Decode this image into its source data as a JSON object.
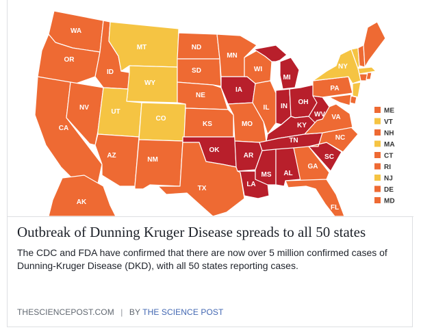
{
  "colors": {
    "dark_red": "#b81f2b",
    "orange": "#ee6a33",
    "yellow": "#f5c443",
    "text": "#1d2129",
    "muted": "#606770"
  },
  "map": {
    "states": [
      {
        "abbr": "WA",
        "level": "orange"
      },
      {
        "abbr": "OR",
        "level": "orange"
      },
      {
        "abbr": "CA",
        "level": "orange"
      },
      {
        "abbr": "NV",
        "level": "orange"
      },
      {
        "abbr": "ID",
        "level": "orange"
      },
      {
        "abbr": "MT",
        "level": "yellow"
      },
      {
        "abbr": "WY",
        "level": "yellow"
      },
      {
        "abbr": "UT",
        "level": "yellow"
      },
      {
        "abbr": "CO",
        "level": "yellow"
      },
      {
        "abbr": "AZ",
        "level": "orange"
      },
      {
        "abbr": "NM",
        "level": "orange"
      },
      {
        "abbr": "ND",
        "level": "orange"
      },
      {
        "abbr": "SD",
        "level": "orange"
      },
      {
        "abbr": "NE",
        "level": "orange"
      },
      {
        "abbr": "KS",
        "level": "orange"
      },
      {
        "abbr": "OK",
        "level": "dark_red"
      },
      {
        "abbr": "TX",
        "level": "orange"
      },
      {
        "abbr": "MN",
        "level": "orange"
      },
      {
        "abbr": "IA",
        "level": "dark_red"
      },
      {
        "abbr": "MO",
        "level": "orange"
      },
      {
        "abbr": "AR",
        "level": "dark_red"
      },
      {
        "abbr": "LA",
        "level": "dark_red"
      },
      {
        "abbr": "WI",
        "level": "orange"
      },
      {
        "abbr": "IL",
        "level": "orange"
      },
      {
        "abbr": "MI",
        "level": "dark_red"
      },
      {
        "abbr": "IN",
        "level": "dark_red"
      },
      {
        "abbr": "OH",
        "level": "dark_red"
      },
      {
        "abbr": "KY",
        "level": "dark_red"
      },
      {
        "abbr": "WV",
        "level": "dark_red"
      },
      {
        "abbr": "TN",
        "level": "dark_red"
      },
      {
        "abbr": "MS",
        "level": "dark_red"
      },
      {
        "abbr": "AL",
        "level": "dark_red"
      },
      {
        "abbr": "GA",
        "level": "orange"
      },
      {
        "abbr": "FL",
        "level": "orange"
      },
      {
        "abbr": "SC",
        "level": "dark_red"
      },
      {
        "abbr": "NC",
        "level": "orange"
      },
      {
        "abbr": "VA",
        "level": "orange"
      },
      {
        "abbr": "PA",
        "level": "orange"
      },
      {
        "abbr": "NY",
        "level": "yellow"
      },
      {
        "abbr": "AK",
        "level": "orange"
      }
    ],
    "legend": [
      {
        "abbr": "ME",
        "level": "orange"
      },
      {
        "abbr": "VT",
        "level": "yellow"
      },
      {
        "abbr": "NH",
        "level": "orange"
      },
      {
        "abbr": "MA",
        "level": "yellow"
      },
      {
        "abbr": "CT",
        "level": "orange"
      },
      {
        "abbr": "RI",
        "level": "orange"
      },
      {
        "abbr": "NJ",
        "level": "yellow"
      },
      {
        "abbr": "DE",
        "level": "orange"
      },
      {
        "abbr": "MD",
        "level": "orange"
      }
    ]
  },
  "article": {
    "headline": "Outbreak of Dunning Kruger Disease spreads to all 50 states",
    "description": "The CDC and FDA have confirmed that there are now over 5 million confirmed cases of Dunning-Kruger Disease (DKD), with all 50 states reporting cases.",
    "domain": "THESCIENCEPOST.COM",
    "separator": "|",
    "by_label": "BY",
    "author": "THE SCIENCE POST"
  }
}
